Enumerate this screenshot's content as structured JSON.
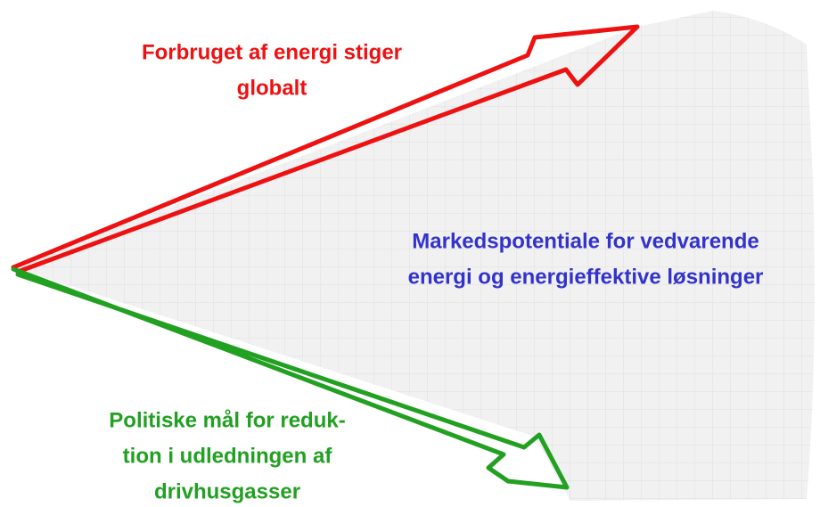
{
  "arrows": [
    {
      "label": [
        "Forbruget af energi stiger",
        "globalt"
      ]
    },
    {
      "label": [
        "Politiske mål for reduk-",
        "tion i udledningen af",
        "drivhusgasser"
      ]
    }
  ],
  "center_label": [
    "Markedspotentiale for vedvarende",
    "energi og energieffektive løsninger"
  ]
}
